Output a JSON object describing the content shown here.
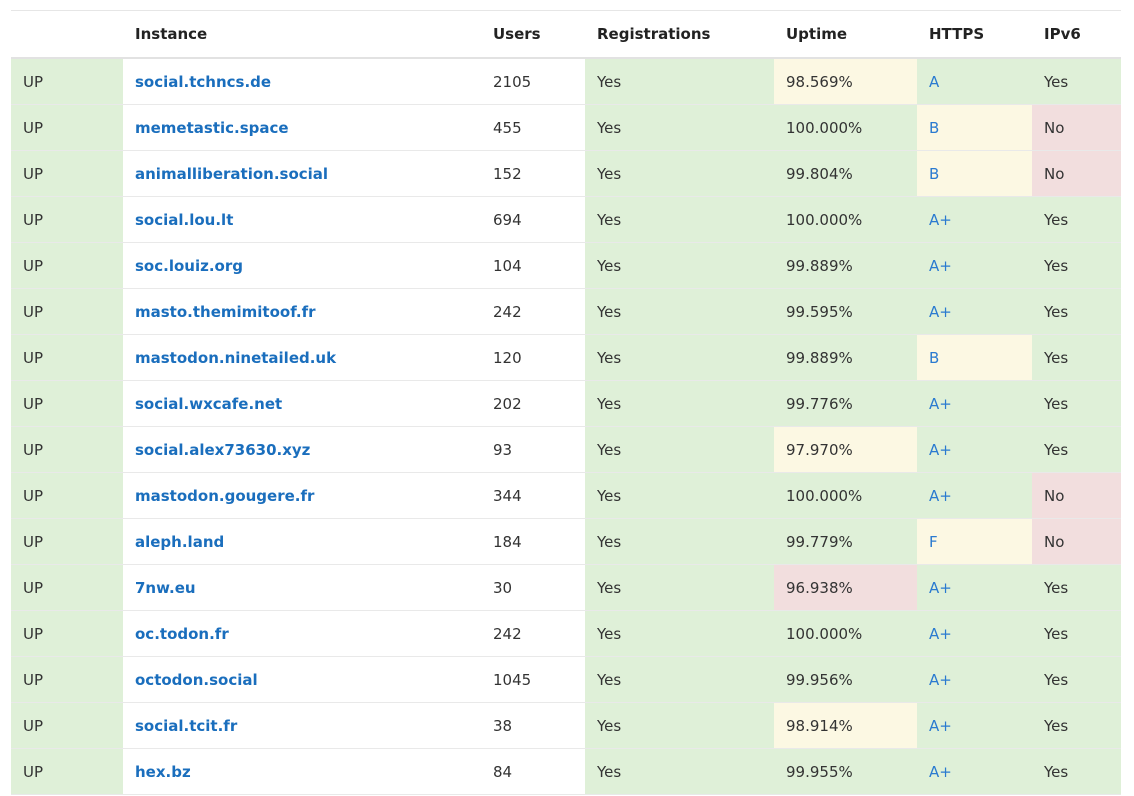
{
  "columns": {
    "status": "",
    "instance": "Instance",
    "users": "Users",
    "registrations": "Registrations",
    "uptime": "Uptime",
    "https": "HTTPS",
    "ipv6": "IPv6"
  },
  "status_colors": {
    "good": "#dff0d8",
    "warn": "#fcf8e3",
    "bad": "#f2dede",
    "link": "#1a6ebd"
  },
  "rows": [
    {
      "status": "UP",
      "instance": "social.tchncs.de",
      "users": "2105",
      "registrations": "Yes",
      "uptime": "98.569%",
      "uptime_level": "warn",
      "https": "A",
      "https_level": "good",
      "ipv6": "Yes",
      "ipv6_level": "good"
    },
    {
      "status": "UP",
      "instance": "memetastic.space",
      "users": "455",
      "registrations": "Yes",
      "uptime": "100.000%",
      "uptime_level": "good",
      "https": "B",
      "https_level": "warn",
      "ipv6": "No",
      "ipv6_level": "bad"
    },
    {
      "status": "UP",
      "instance": "animalliberation.social",
      "users": "152",
      "registrations": "Yes",
      "uptime": "99.804%",
      "uptime_level": "good",
      "https": "B",
      "https_level": "warn",
      "ipv6": "No",
      "ipv6_level": "bad"
    },
    {
      "status": "UP",
      "instance": "social.lou.lt",
      "users": "694",
      "registrations": "Yes",
      "uptime": "100.000%",
      "uptime_level": "good",
      "https": "A+",
      "https_level": "good",
      "ipv6": "Yes",
      "ipv6_level": "good"
    },
    {
      "status": "UP",
      "instance": "soc.louiz.org",
      "users": "104",
      "registrations": "Yes",
      "uptime": "99.889%",
      "uptime_level": "good",
      "https": "A+",
      "https_level": "good",
      "ipv6": "Yes",
      "ipv6_level": "good"
    },
    {
      "status": "UP",
      "instance": "masto.themimitoof.fr",
      "users": "242",
      "registrations": "Yes",
      "uptime": "99.595%",
      "uptime_level": "good",
      "https": "A+",
      "https_level": "good",
      "ipv6": "Yes",
      "ipv6_level": "good"
    },
    {
      "status": "UP",
      "instance": "mastodon.ninetailed.uk",
      "users": "120",
      "registrations": "Yes",
      "uptime": "99.889%",
      "uptime_level": "good",
      "https": "B",
      "https_level": "warn",
      "ipv6": "Yes",
      "ipv6_level": "good"
    },
    {
      "status": "UP",
      "instance": "social.wxcafe.net",
      "users": "202",
      "registrations": "Yes",
      "uptime": "99.776%",
      "uptime_level": "good",
      "https": "A+",
      "https_level": "good",
      "ipv6": "Yes",
      "ipv6_level": "good"
    },
    {
      "status": "UP",
      "instance": "social.alex73630.xyz",
      "users": "93",
      "registrations": "Yes",
      "uptime": "97.970%",
      "uptime_level": "warn",
      "https": "A+",
      "https_level": "good",
      "ipv6": "Yes",
      "ipv6_level": "good"
    },
    {
      "status": "UP",
      "instance": "mastodon.gougere.fr",
      "users": "344",
      "registrations": "Yes",
      "uptime": "100.000%",
      "uptime_level": "good",
      "https": "A+",
      "https_level": "good",
      "ipv6": "No",
      "ipv6_level": "bad"
    },
    {
      "status": "UP",
      "instance": "aleph.land",
      "users": "184",
      "registrations": "Yes",
      "uptime": "99.779%",
      "uptime_level": "good",
      "https": "F",
      "https_level": "warn",
      "ipv6": "No",
      "ipv6_level": "bad"
    },
    {
      "status": "UP",
      "instance": "7nw.eu",
      "users": "30",
      "registrations": "Yes",
      "uptime": "96.938%",
      "uptime_level": "bad",
      "https": "A+",
      "https_level": "good",
      "ipv6": "Yes",
      "ipv6_level": "good"
    },
    {
      "status": "UP",
      "instance": "oc.todon.fr",
      "users": "242",
      "registrations": "Yes",
      "uptime": "100.000%",
      "uptime_level": "good",
      "https": "A+",
      "https_level": "good",
      "ipv6": "Yes",
      "ipv6_level": "good"
    },
    {
      "status": "UP",
      "instance": "octodon.social",
      "users": "1045",
      "registrations": "Yes",
      "uptime": "99.956%",
      "uptime_level": "good",
      "https": "A+",
      "https_level": "good",
      "ipv6": "Yes",
      "ipv6_level": "good"
    },
    {
      "status": "UP",
      "instance": "social.tcit.fr",
      "users": "38",
      "registrations": "Yes",
      "uptime": "98.914%",
      "uptime_level": "warn",
      "https": "A+",
      "https_level": "good",
      "ipv6": "Yes",
      "ipv6_level": "good"
    },
    {
      "status": "UP",
      "instance": "hex.bz",
      "users": "84",
      "registrations": "Yes",
      "uptime": "99.955%",
      "uptime_level": "good",
      "https": "A+",
      "https_level": "good",
      "ipv6": "Yes",
      "ipv6_level": "good"
    }
  ]
}
